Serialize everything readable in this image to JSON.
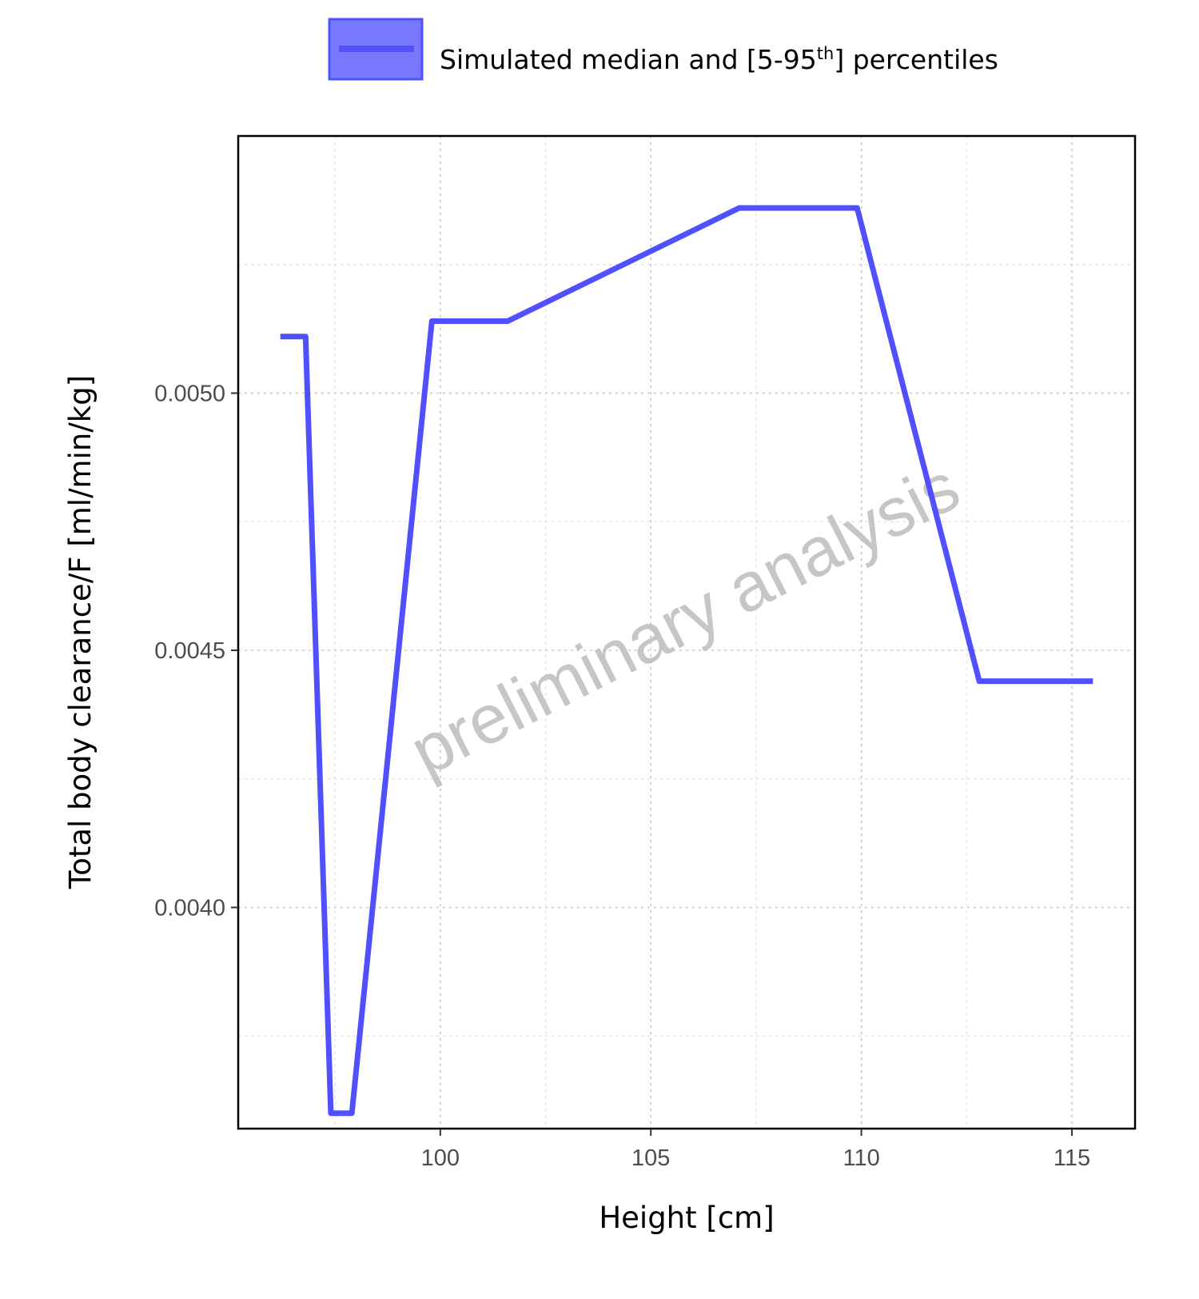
{
  "chart_data": {
    "type": "line",
    "title": "",
    "xlabel": "Height [cm]",
    "ylabel": "Total body clearance/F [ml/min/kg]",
    "xlim": [
      95.2,
      116.5
    ],
    "ylim": [
      0.00357,
      0.0055
    ],
    "xticks": [
      100,
      105,
      110,
      115
    ],
    "xtick_labels": [
      "100",
      "105",
      "110",
      "115"
    ],
    "yticks": [
      0.004,
      0.0045,
      0.005
    ],
    "ytick_labels": [
      "0.0040",
      "0.0045",
      "0.0050"
    ],
    "grid": true,
    "legend": {
      "position": "top",
      "label_main": "Simulated median and [5-95",
      "label_sup": "th",
      "label_end": "] percentiles"
    },
    "series": [
      {
        "name": "Simulated median and [5-95th] percentiles",
        "color": "#5050ff",
        "x": [
          96.2,
          96.8,
          97.4,
          97.9,
          99.8,
          101.6,
          107.1,
          109.9,
          112.8,
          115.5
        ],
        "y": [
          0.00511,
          0.00511,
          0.0036,
          0.0036,
          0.00514,
          0.00514,
          0.00536,
          0.00536,
          0.00444,
          0.00444
        ]
      }
    ],
    "band_fill_color": "#7070ff",
    "watermark": "preliminary analysis"
  }
}
